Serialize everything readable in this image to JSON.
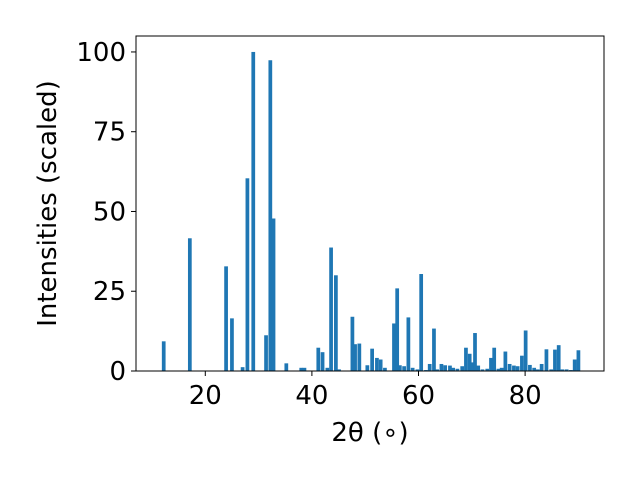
{
  "chart_data": {
    "type": "bar",
    "title": "",
    "xlabel": "2θ (∘)",
    "ylabel": "Intensities (scaled)",
    "xlim": [
      7.0,
      94.8
    ],
    "ylim": [
      0,
      105
    ],
    "xticks": [
      20,
      40,
      60,
      80
    ],
    "yticks": [
      0,
      25,
      50,
      75,
      100
    ],
    "grid": false,
    "bar_width_deg": 0.7,
    "bar_color": "#1f77b4",
    "series": [
      {
        "x": [
          12.2,
          17.1,
          23.9,
          25.0,
          27.0,
          27.9,
          29.0,
          31.4,
          32.2,
          32.8,
          35.2,
          38.0,
          38.6,
          41.2,
          42.0,
          42.9,
          43.6,
          44.5,
          45.1,
          47.6,
          48.1,
          48.9,
          50.4,
          51.3,
          52.2,
          52.9,
          53.7,
          55.4,
          56.0,
          56.5,
          57.3,
          58.1,
          58.9,
          59.8,
          60.5,
          61.4,
          62.1,
          62.9,
          63.5,
          64.3,
          65.0,
          65.9,
          66.5,
          67.3,
          68.2,
          68.9,
          69.6,
          70.1,
          70.6,
          71.2,
          72.0,
          72.9,
          73.6,
          74.2,
          75.0,
          75.6,
          76.3,
          77.1,
          77.9,
          78.6,
          79.4,
          80.1,
          80.9,
          81.7,
          82.4,
          83.1,
          84.0,
          84.9,
          85.6,
          86.3,
          87.0,
          87.8,
          88.6,
          89.3,
          90.0
        ],
        "values": [
          9.3,
          41.6,
          32.8,
          16.5,
          1.2,
          60.4,
          100.0,
          11.2,
          97.4,
          47.8,
          2.4,
          1.0,
          1.0,
          7.3,
          5.9,
          1.0,
          38.7,
          30.0,
          0.5,
          17.0,
          8.4,
          8.6,
          1.8,
          7.0,
          4.1,
          3.6,
          1.0,
          14.9,
          25.9,
          1.8,
          1.5,
          16.8,
          1.0,
          0.5,
          30.4,
          0.3,
          2.2,
          13.3,
          0.5,
          2.2,
          1.8,
          1.7,
          1.0,
          0.7,
          1.5,
          7.3,
          5.4,
          2.7,
          11.9,
          1.7,
          0.5,
          0.7,
          4.1,
          7.3,
          0.7,
          1.0,
          6.1,
          2.2,
          1.7,
          1.5,
          4.8,
          12.7,
          1.9,
          1.0,
          0.5,
          2.2,
          6.8,
          0.5,
          6.7,
          8.1,
          0.5,
          0.5,
          0.3,
          3.6,
          6.5
        ]
      }
    ]
  }
}
